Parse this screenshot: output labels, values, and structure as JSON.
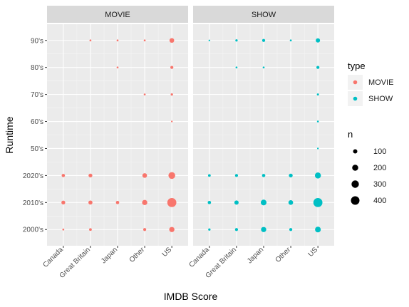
{
  "chart_data": {
    "type": "scatter",
    "xlabel": "IMDB Score",
    "ylabel": "Runtime",
    "x_categories": [
      "Canada",
      "Great Britain",
      "Japan",
      "Other",
      "US"
    ],
    "y_categories": [
      "2000's",
      "2010's",
      "2020's",
      "50's",
      "60's",
      "70's",
      "80's",
      "90's"
    ],
    "grid": true,
    "legend_placement": "right",
    "facets": [
      {
        "label": "MOVIE",
        "color": "#F8766D",
        "points": [
          {
            "x": "Great Britain",
            "y": "90's",
            "n": 20
          },
          {
            "x": "Japan",
            "y": "90's",
            "n": 20
          },
          {
            "x": "Other",
            "y": "90's",
            "n": 20
          },
          {
            "x": "US",
            "y": "90's",
            "n": 120
          },
          {
            "x": "Japan",
            "y": "80's",
            "n": 20
          },
          {
            "x": "US",
            "y": "80's",
            "n": 50
          },
          {
            "x": "Other",
            "y": "70's",
            "n": 20
          },
          {
            "x": "US",
            "y": "70's",
            "n": 30
          },
          {
            "x": "US",
            "y": "60's",
            "n": 15
          },
          {
            "x": "Canada",
            "y": "2020's",
            "n": 60
          },
          {
            "x": "Great Britain",
            "y": "2020's",
            "n": 80
          },
          {
            "x": "Other",
            "y": "2020's",
            "n": 120
          },
          {
            "x": "US",
            "y": "2020's",
            "n": 250
          },
          {
            "x": "Canada",
            "y": "2010's",
            "n": 80
          },
          {
            "x": "Great Britain",
            "y": "2010's",
            "n": 90
          },
          {
            "x": "Japan",
            "y": "2010's",
            "n": 60
          },
          {
            "x": "Other",
            "y": "2010's",
            "n": 150
          },
          {
            "x": "US",
            "y": "2010's",
            "n": 450
          },
          {
            "x": "Canada",
            "y": "2000's",
            "n": 20
          },
          {
            "x": "Great Britain",
            "y": "2000's",
            "n": 40
          },
          {
            "x": "Other",
            "y": "2000's",
            "n": 50
          },
          {
            "x": "US",
            "y": "2000's",
            "n": 150
          }
        ]
      },
      {
        "label": "SHOW",
        "color": "#00BFC4",
        "points": [
          {
            "x": "Canada",
            "y": "90's",
            "n": 15
          },
          {
            "x": "Great Britain",
            "y": "90's",
            "n": 30
          },
          {
            "x": "Japan",
            "y": "90's",
            "n": 50
          },
          {
            "x": "Other",
            "y": "90's",
            "n": 20
          },
          {
            "x": "US",
            "y": "90's",
            "n": 100
          },
          {
            "x": "Great Britain",
            "y": "80's",
            "n": 20
          },
          {
            "x": "Japan",
            "y": "80's",
            "n": 20
          },
          {
            "x": "US",
            "y": "80's",
            "n": 50
          },
          {
            "x": "US",
            "y": "70's",
            "n": 25
          },
          {
            "x": "US",
            "y": "60's",
            "n": 20
          },
          {
            "x": "US",
            "y": "50's",
            "n": 15
          },
          {
            "x": "Canada",
            "y": "2020's",
            "n": 40
          },
          {
            "x": "Great Britain",
            "y": "2020's",
            "n": 50
          },
          {
            "x": "Japan",
            "y": "2020's",
            "n": 60
          },
          {
            "x": "Other",
            "y": "2020's",
            "n": 80
          },
          {
            "x": "US",
            "y": "2020's",
            "n": 200
          },
          {
            "x": "Canada",
            "y": "2010's",
            "n": 60
          },
          {
            "x": "Great Britain",
            "y": "2010's",
            "n": 100
          },
          {
            "x": "Japan",
            "y": "2010's",
            "n": 180
          },
          {
            "x": "Other",
            "y": "2010's",
            "n": 120
          },
          {
            "x": "US",
            "y": "2010's",
            "n": 450
          },
          {
            "x": "Canada",
            "y": "2000's",
            "n": 30
          },
          {
            "x": "Great Britain",
            "y": "2000's",
            "n": 50
          },
          {
            "x": "Japan",
            "y": "2000's",
            "n": 150
          },
          {
            "x": "Other",
            "y": "2000's",
            "n": 50
          },
          {
            "x": "US",
            "y": "2000's",
            "n": 180
          }
        ]
      }
    ],
    "size_legend": {
      "title": "n",
      "values": [
        100,
        200,
        300,
        400
      ]
    },
    "color_legend": {
      "title": "type",
      "entries": [
        {
          "label": "MOVIE",
          "color": "#F8766D"
        },
        {
          "label": "SHOW",
          "color": "#00BFC4"
        }
      ]
    }
  }
}
